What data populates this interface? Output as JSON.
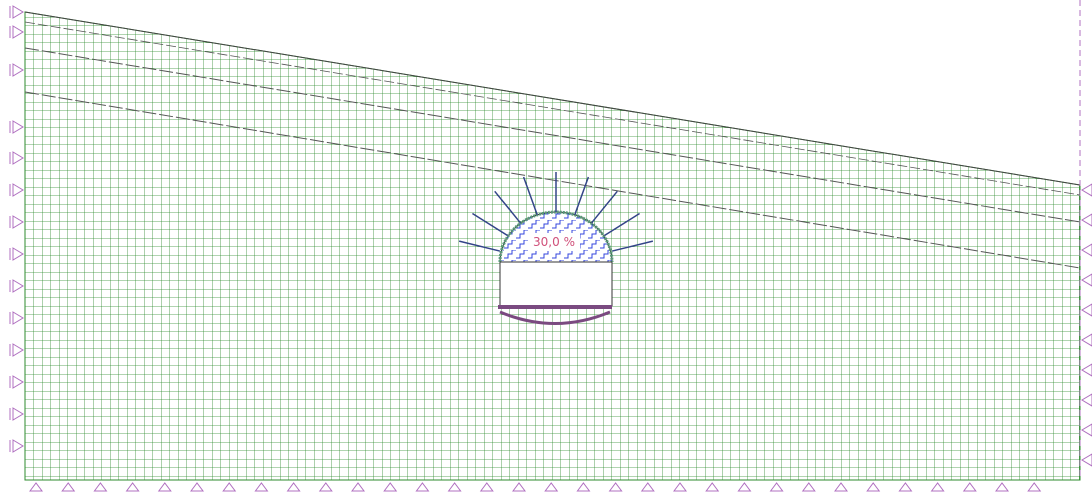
{
  "model": {
    "excavation_label": "30,0 %"
  }
}
